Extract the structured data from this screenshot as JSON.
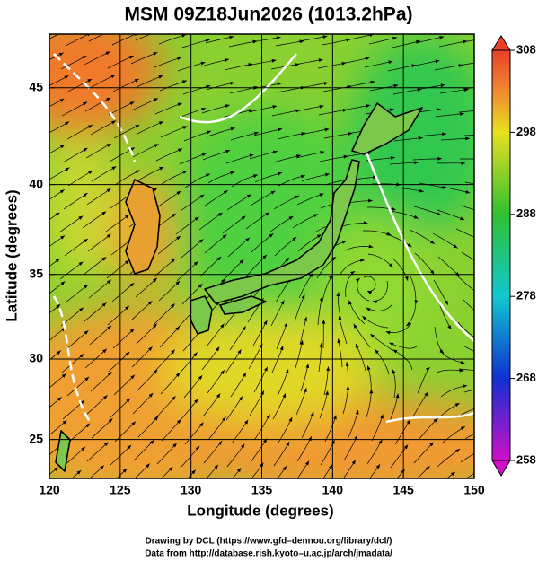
{
  "chart_data": {
    "type": "map",
    "title": "MSM 09Z18Jun2026 (1013.2hPa)",
    "xlabel": "Longitude (degrees)",
    "ylabel": "Latitude  (degrees)",
    "projection": "mercator",
    "xlim": [
      120,
      150
    ],
    "xticks": [
      120,
      125,
      130,
      135,
      140,
      145,
      150
    ],
    "ylim": [
      22.5,
      47.6
    ],
    "yticks": [
      25,
      30,
      35,
      40,
      45
    ],
    "grid": true,
    "colorbar": {
      "lim": [
        258,
        308
      ],
      "ticks": [
        258,
        268,
        278,
        288,
        298,
        308
      ]
    },
    "credits": [
      "Drawing by DCL (https://www.gfd–dennou.org/library/dcl/)",
      "Data from http://database.rish.kyoto–u.ac.jp/arch/jmadata/"
    ]
  }
}
